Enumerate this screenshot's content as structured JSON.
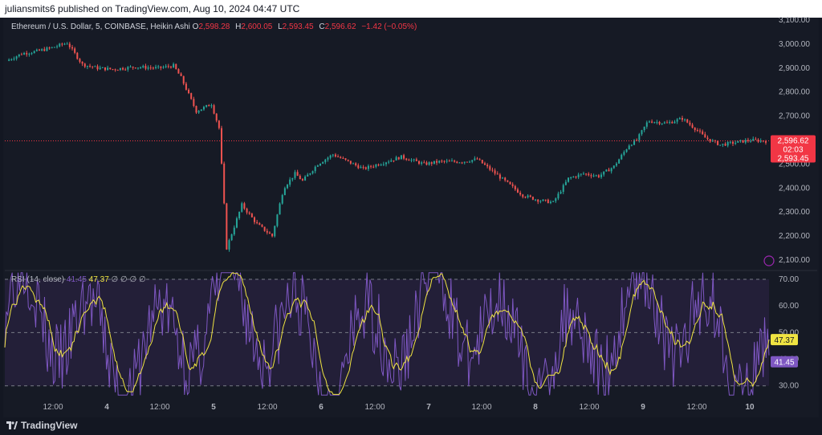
{
  "header": {
    "text": "juliansmits6 published on TradingView.com, Aug 10, 2024 04:47 UTC"
  },
  "legend": {
    "symbol": "Ethereum / U.S. Dollar, 5, COINBASE, Heikin Ashi",
    "o_label": "O",
    "o": "2,598.28",
    "h_label": "H",
    "h": "2,600.05",
    "l_label": "L",
    "l": "2,593.45",
    "c_label": "C",
    "c": "2,596.62",
    "change": "−1.42 (−0.05%)"
  },
  "rsi_legend": {
    "name": "RSI (14, close)",
    "rsi": "41.45",
    "ma": "47.37",
    "extras": "∅ ∅ ∅ ∅"
  },
  "price_badge": {
    "price": "2,596.62",
    "countdown": "02:03",
    "low": "2,593.45"
  },
  "rsi_badges": {
    "ma": "47.37",
    "rsi": "41.45"
  },
  "footer": {
    "brand": "TradingView"
  },
  "colors": {
    "up": "#26a69a",
    "down": "#ef5350",
    "rsi": "#7e57c2",
    "rsi_ma": "#f0e442",
    "price_line": "#f23645",
    "rsi_band": "#2a2240"
  },
  "chart_data": [
    {
      "type": "candlestick",
      "title": "Ethereum / U.S. Dollar, 5, COINBASE, Heikin Ashi",
      "x_ticks": [
        "12:00",
        "4",
        "12:00",
        "5",
        "12:00",
        "6",
        "12:00",
        "7",
        "12:00",
        "8",
        "12:00",
        "9",
        "12:00",
        "10"
      ],
      "y_ticks": [
        "3,100.00",
        "3,000.00",
        "2,900.00",
        "2,800.00",
        "2,700.00",
        "2,600.00",
        "2,500.00",
        "2,400.00",
        "2,300.00",
        "2,200.00",
        "2,100.00"
      ],
      "y_values": [
        3100,
        3000,
        2900,
        2800,
        2700,
        2600,
        2500,
        2400,
        2300,
        2200,
        2100
      ],
      "ylim": [
        2060,
        3110
      ],
      "close_path": [
        [
          0,
          2930
        ],
        [
          0.02,
          2960
        ],
        [
          0.04,
          2970
        ],
        [
          0.06,
          2985
        ],
        [
          0.08,
          3005
        ],
        [
          0.09,
          2960
        ],
        [
          0.1,
          2915
        ],
        [
          0.12,
          2900
        ],
        [
          0.14,
          2895
        ],
        [
          0.17,
          2905
        ],
        [
          0.2,
          2900
        ],
        [
          0.22,
          2910
        ],
        [
          0.23,
          2860
        ],
        [
          0.24,
          2790
        ],
        [
          0.25,
          2720
        ],
        [
          0.27,
          2750
        ],
        [
          0.28,
          2650
        ],
        [
          0.285,
          2420
        ],
        [
          0.29,
          2150
        ],
        [
          0.31,
          2330
        ],
        [
          0.33,
          2250
        ],
        [
          0.35,
          2200
        ],
        [
          0.365,
          2400
        ],
        [
          0.38,
          2460
        ],
        [
          0.39,
          2430
        ],
        [
          0.41,
          2500
        ],
        [
          0.43,
          2540
        ],
        [
          0.45,
          2510
        ],
        [
          0.47,
          2480
        ],
        [
          0.49,
          2500
        ],
        [
          0.52,
          2530
        ],
        [
          0.55,
          2500
        ],
        [
          0.57,
          2510
        ],
        [
          0.6,
          2510
        ],
        [
          0.62,
          2520
        ],
        [
          0.64,
          2470
        ],
        [
          0.66,
          2420
        ],
        [
          0.68,
          2370
        ],
        [
          0.7,
          2350
        ],
        [
          0.72,
          2340
        ],
        [
          0.74,
          2440
        ],
        [
          0.76,
          2460
        ],
        [
          0.78,
          2450
        ],
        [
          0.8,
          2490
        ],
        [
          0.82,
          2580
        ],
        [
          0.83,
          2600
        ],
        [
          0.845,
          2680
        ],
        [
          0.87,
          2670
        ],
        [
          0.89,
          2690
        ],
        [
          0.91,
          2640
        ],
        [
          0.92,
          2610
        ],
        [
          0.94,
          2580
        ],
        [
          0.96,
          2590
        ],
        [
          0.98,
          2600
        ],
        [
          1,
          2596
        ]
      ],
      "last_price": 2596.62
    },
    {
      "type": "line",
      "title": "RSI (14, close)",
      "series": [
        {
          "name": "RSI",
          "color": "#7e57c2"
        },
        {
          "name": "RSI MA",
          "color": "#f0e442"
        }
      ],
      "y_ticks": [
        "70.00",
        "60.00",
        "50.00",
        "40.00",
        "30.00"
      ],
      "y_values": [
        70,
        60,
        50,
        40,
        30
      ],
      "ylim": [
        26,
        73
      ],
      "upper_band": 70,
      "middle_band": 50,
      "lower_band": 30,
      "last_rsi": 41.45,
      "last_ma": 47.37
    }
  ]
}
